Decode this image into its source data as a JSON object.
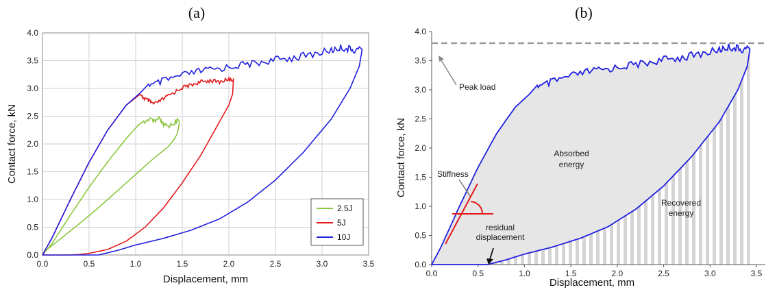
{
  "chart_data": [
    {
      "type": "line",
      "title": "(a)",
      "xlabel": "Displacement, mm",
      "ylabel": "Contact force, kN",
      "xlim": [
        0,
        3.5
      ],
      "ylim": [
        0,
        4.0
      ],
      "xticks": [
        "0.0",
        "0.5",
        "1.0",
        "1.5",
        "2.0",
        "2.5",
        "3.0",
        "3.5"
      ],
      "yticks": [
        "0.0",
        "0.5",
        "1.0",
        "1.5",
        "2.0",
        "2.5",
        "3.0",
        "3.5",
        "4.0"
      ],
      "grid": true,
      "legend_position": "bottom-right",
      "series": [
        {
          "name": "2.5J",
          "color": "#8cc63f",
          "x": [
            0,
            0.1,
            0.3,
            0.5,
            0.7,
            0.9,
            1.05,
            1.15,
            1.2,
            1.25,
            1.3,
            1.35,
            1.42,
            1.45,
            1.47,
            1.45,
            1.42,
            1.35,
            1.2,
            1.0,
            0.8,
            0.6,
            0.4,
            0.2,
            0.05,
            0
          ],
          "y": [
            0,
            0.2,
            0.72,
            1.22,
            1.68,
            2.1,
            2.38,
            2.5,
            2.43,
            2.5,
            2.38,
            2.36,
            2.42,
            2.45,
            2.4,
            2.2,
            2.1,
            1.95,
            1.75,
            1.45,
            1.15,
            0.85,
            0.57,
            0.3,
            0.1,
            0
          ]
        },
        {
          "name": "5J",
          "color": "#e31a1c",
          "x": [
            0,
            0.1,
            0.3,
            0.5,
            0.7,
            0.9,
            1.05,
            1.1,
            1.15,
            1.2,
            1.3,
            1.4,
            1.5,
            1.6,
            1.7,
            1.8,
            1.9,
            2.0,
            2.05,
            2.04,
            2.0,
            1.9,
            1.7,
            1.5,
            1.3,
            1.1,
            0.9,
            0.7,
            0.5,
            0.4,
            0.3,
            0.2,
            0
          ],
          "y": [
            0,
            0.3,
            1.0,
            1.67,
            2.25,
            2.7,
            2.9,
            2.85,
            2.8,
            2.75,
            2.85,
            2.95,
            3.05,
            3.1,
            3.15,
            3.18,
            3.15,
            3.2,
            3.18,
            2.9,
            2.7,
            2.4,
            1.8,
            1.3,
            0.85,
            0.5,
            0.25,
            0.1,
            0.03,
            0.01,
            0.0,
            0.0,
            0.0
          ]
        },
        {
          "name": "10J",
          "color": "#1f1fe0",
          "x": [
            0,
            0.1,
            0.3,
            0.5,
            0.7,
            0.9,
            1.05,
            1.15,
            1.3,
            1.5,
            1.7,
            1.9,
            2.1,
            2.3,
            2.5,
            2.7,
            2.9,
            3.1,
            3.2,
            3.3,
            3.4,
            3.43,
            3.4,
            3.3,
            3.1,
            2.8,
            2.5,
            2.2,
            1.9,
            1.6,
            1.3,
            1.0,
            0.8,
            0.65,
            0.6,
            0.4,
            0.2,
            0
          ],
          "y": [
            0,
            0.3,
            1.0,
            1.67,
            2.25,
            2.7,
            2.92,
            3.1,
            3.2,
            3.3,
            3.38,
            3.42,
            3.48,
            3.52,
            3.58,
            3.62,
            3.68,
            3.75,
            3.8,
            3.77,
            3.75,
            3.7,
            3.4,
            3.0,
            2.45,
            1.85,
            1.35,
            0.95,
            0.65,
            0.45,
            0.3,
            0.18,
            0.08,
            0.02,
            0.0,
            0.0,
            0.0,
            0.0
          ]
        }
      ]
    },
    {
      "type": "area",
      "title": "(b)",
      "xlabel": "Displacement, mm",
      "ylabel": "Contact force, kN",
      "xlim": [
        0,
        3.5
      ],
      "ylim": [
        0,
        4.0
      ],
      "xticks": [
        "0.0",
        "0.5",
        "1.0",
        "1.5",
        "2.0",
        "2.5",
        "3.0",
        "3.5"
      ],
      "yticks": [
        "0.0",
        "0.5",
        "1.0",
        "1.5",
        "2.0",
        "2.5",
        "3.0",
        "3.5",
        "4.0"
      ],
      "grid": false,
      "series": [
        {
          "color": "#1f1fe0",
          "x": [
            0,
            0.1,
            0.3,
            0.5,
            0.7,
            0.9,
            1.05,
            1.15,
            1.3,
            1.5,
            1.7,
            1.9,
            2.1,
            2.3,
            2.5,
            2.7,
            2.9,
            3.1,
            3.2,
            3.3,
            3.4,
            3.43,
            3.4,
            3.3,
            3.1,
            2.8,
            2.5,
            2.2,
            1.9,
            1.6,
            1.3,
            1.0,
            0.8,
            0.65,
            0.6,
            0.4,
            0.2,
            0
          ],
          "y": [
            0,
            0.3,
            1.0,
            1.67,
            2.25,
            2.7,
            2.92,
            3.1,
            3.2,
            3.3,
            3.38,
            3.42,
            3.48,
            3.52,
            3.58,
            3.62,
            3.68,
            3.75,
            3.8,
            3.77,
            3.75,
            3.7,
            3.4,
            3.0,
            2.45,
            1.85,
            1.35,
            0.95,
            0.65,
            0.45,
            0.3,
            0.18,
            0.08,
            0.02,
            0.0,
            0.0,
            0.0,
            0.0
          ]
        }
      ],
      "peak_load": 3.8,
      "annotations": {
        "peak_load": "Peak load",
        "stiffness": "Stiffness",
        "absorbed_line1": "Absorbed",
        "absorbed_line2": "energy",
        "recovered_line1": "Recovered",
        "recovered_line2": "energy",
        "residual_line1": "residual",
        "residual_line2": "displacement"
      },
      "colors": {
        "stiffness": "#e31a1c",
        "peak_line": "#999999",
        "shade": "#e6e6e6",
        "hatch": "#d4d4d4"
      }
    }
  ]
}
